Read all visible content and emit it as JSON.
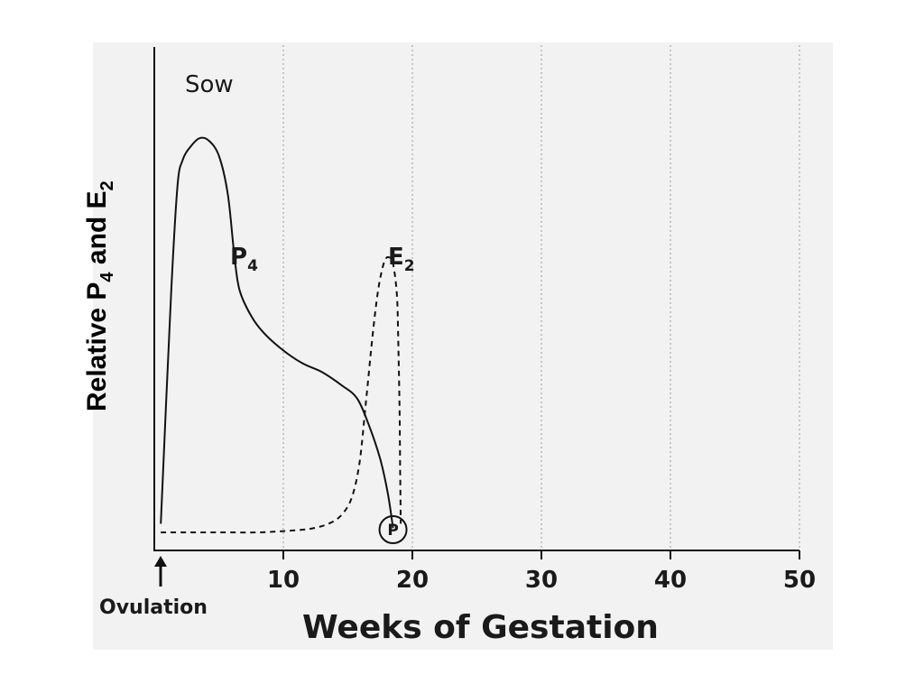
{
  "chart_data": {
    "type": "line",
    "species": "Sow",
    "xlabel": "Weeks of Gestation",
    "ylabel": {
      "prefix": "Relative P",
      "sub1": "4",
      "mid": " and E",
      "sub2": "2"
    },
    "xlim": [
      0,
      50
    ],
    "x_ticks": [
      10,
      20,
      30,
      40,
      50
    ],
    "ylim": [
      0,
      1
    ],
    "grid_x": true,
    "origin_annotation": "Ovulation",
    "end_marker": {
      "label": "P",
      "x": 18.5,
      "y": 0
    },
    "series": [
      {
        "name": "P",
        "name_sub": "4",
        "style": "solid",
        "points": [
          [
            0.5,
            0.02
          ],
          [
            1.3,
            0.55
          ],
          [
            1.8,
            0.8
          ],
          [
            2.2,
            0.86
          ],
          [
            2.8,
            0.89
          ],
          [
            3.5,
            0.91
          ],
          [
            4.2,
            0.905
          ],
          [
            5.0,
            0.87
          ],
          [
            5.7,
            0.78
          ],
          [
            6.2,
            0.64
          ],
          [
            6.6,
            0.56
          ],
          [
            7.5,
            0.5
          ],
          [
            8.5,
            0.46
          ],
          [
            10,
            0.42
          ],
          [
            11.5,
            0.39
          ],
          [
            13,
            0.37
          ],
          [
            14.5,
            0.34
          ],
          [
            15.7,
            0.31
          ],
          [
            16.6,
            0.25
          ],
          [
            17.5,
            0.17
          ],
          [
            18.1,
            0.09
          ],
          [
            18.5,
            0.01
          ]
        ]
      },
      {
        "name": "E",
        "name_sub": "2",
        "style": "dashed",
        "points": [
          [
            0.5,
            0.0
          ],
          [
            2,
            0.0
          ],
          [
            5,
            0.0
          ],
          [
            8,
            0.0
          ],
          [
            10,
            0.003
          ],
          [
            12,
            0.008
          ],
          [
            13.5,
            0.02
          ],
          [
            14.5,
            0.04
          ],
          [
            15.3,
            0.08
          ],
          [
            15.9,
            0.16
          ],
          [
            16.4,
            0.3
          ],
          [
            16.9,
            0.45
          ],
          [
            17.3,
            0.55
          ],
          [
            17.6,
            0.6
          ],
          [
            17.9,
            0.63
          ],
          [
            18.2,
            0.635
          ],
          [
            18.5,
            0.62
          ],
          [
            18.8,
            0.55
          ],
          [
            18.9,
            0.45
          ],
          [
            19.0,
            0.3
          ],
          [
            19.05,
            0.15
          ],
          [
            19.1,
            0.02
          ]
        ]
      }
    ]
  }
}
